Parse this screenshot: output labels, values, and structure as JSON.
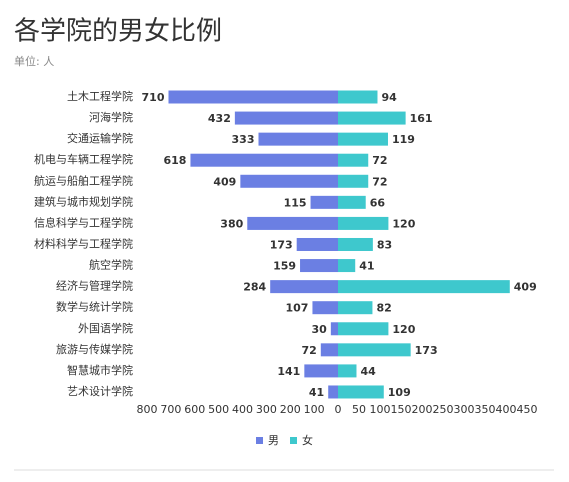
{
  "chart_data": {
    "type": "butterfly",
    "title": "各学院的男女比例",
    "subtitle": "单位: 人",
    "categories": [
      "土木工程学院",
      "河海学院",
      "交通运输学院",
      "机电与车辆工程学院",
      "航运与船舶工程学院",
      "建筑与城市规划学院",
      "信息科学与工程学院",
      "材料科学与工程学院",
      "航空学院",
      "经济与管理学院",
      "数学与统计学院",
      "外国语学院",
      "旅游与传媒学院",
      "智慧城市学院",
      "艺术设计学院"
    ],
    "series": [
      {
        "name": "男",
        "color": "#6b7fe3",
        "axis": "x1",
        "values": [
          710,
          432,
          333,
          618,
          409,
          115,
          380,
          173,
          159,
          284,
          107,
          30,
          72,
          141,
          41
        ]
      },
      {
        "name": "女",
        "color": "#3ec8cd",
        "axis": "x2",
        "values": [
          94,
          161,
          119,
          72,
          72,
          66,
          120,
          83,
          41,
          409,
          82,
          120,
          173,
          44,
          109
        ]
      }
    ],
    "x1lim": [
      0,
      800
    ],
    "x1ticks": [
      100,
      200,
      300,
      400,
      500,
      600,
      700,
      800
    ],
    "x2lim": [
      0,
      450
    ],
    "x2ticks": [
      0,
      50,
      100,
      150,
      200,
      250,
      300,
      350,
      400,
      450
    ]
  }
}
